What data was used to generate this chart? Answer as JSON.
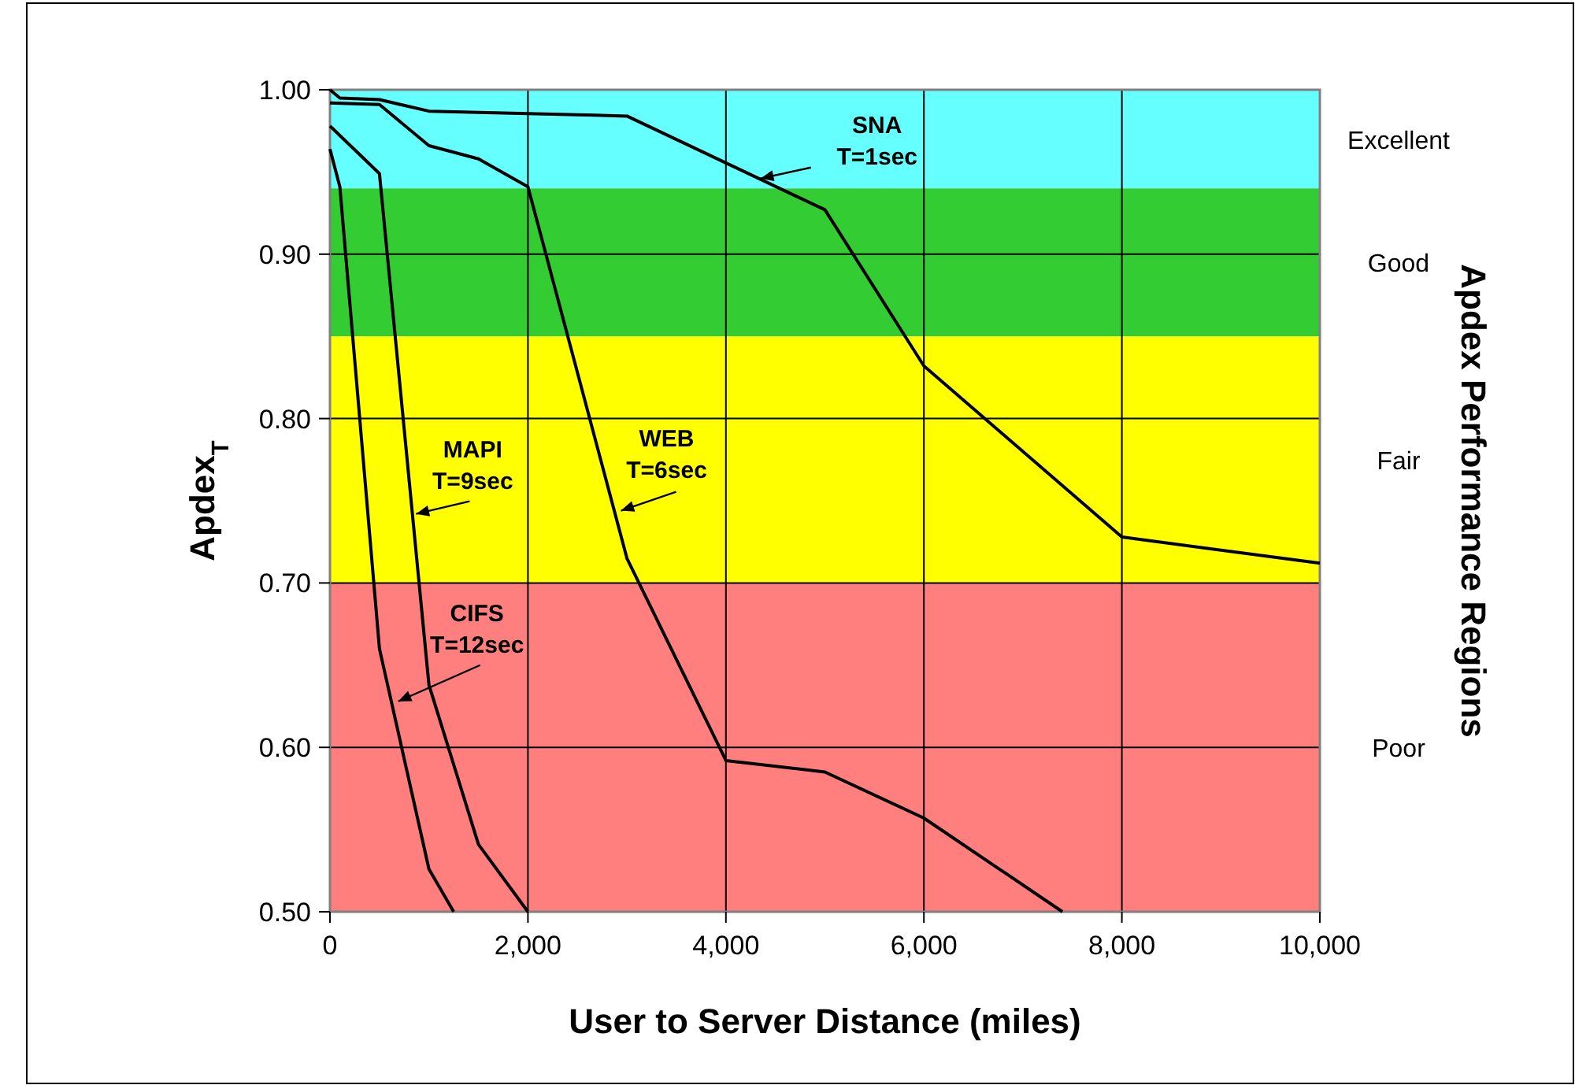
{
  "chart_data": {
    "type": "line",
    "xlabel": "User to Server Distance (miles)",
    "ylabel": "Apdex$_{T}$",
    "y2label": "Apdex Performance Regions",
    "xlim": [
      0,
      10000
    ],
    "ylim": [
      0.5,
      1.0
    ],
    "xticks": [
      0,
      {
        "value": 2000,
        "label": "2,000"
      },
      {
        "value": 4000,
        "label": "4,000"
      },
      {
        "value": 6000,
        "label": "6,000"
      },
      {
        "value": 8000,
        "label": "8,000"
      },
      {
        "value": 10000,
        "label": "10,000"
      }
    ],
    "yticks": [
      {
        "value": 0.5,
        "label": "0.50"
      },
      {
        "value": 0.6,
        "label": "0.60"
      },
      {
        "value": 0.7,
        "label": "0.70"
      },
      {
        "value": 0.8,
        "label": "0.80"
      },
      {
        "value": 0.9,
        "label": "0.90"
      },
      {
        "value": 1.0,
        "label": "1.00"
      }
    ],
    "grid": true,
    "marker": "none",
    "line_style": "solid",
    "series": [
      {
        "color": "#000000",
        "x": [
          0,
          100,
          500,
          1000,
          3000,
          5000,
          6000,
          8000,
          10000
        ],
        "values": [
          1.0,
          0.995,
          0.994,
          0.987,
          0.984,
          0.927,
          0.832,
          0.728,
          0.712
        ]
      },
      {
        "color": "#000000",
        "x": [
          0,
          500,
          1000,
          1500,
          2000,
          3000,
          4000,
          5000,
          6000,
          7400
        ],
        "values": [
          0.992,
          0.991,
          0.966,
          0.958,
          0.941,
          0.715,
          0.592,
          0.585,
          0.557,
          0.5
        ]
      },
      {
        "color": "#000000",
        "x": [
          0,
          500,
          1000,
          1500,
          2000
        ],
        "values": [
          0.978,
          0.949,
          0.638,
          0.541,
          0.5
        ]
      },
      {
        "color": "#000000",
        "x": [
          0,
          100,
          500,
          1000,
          1250
        ],
        "values": [
          0.964,
          0.941,
          0.66,
          0.526,
          0.5
        ]
      }
    ],
    "bands": [
      {
        "axis": "y",
        "from": 0.94,
        "to": 1.0,
        "label": "Excellent",
        "color": "#66ffff"
      },
      {
        "axis": "y",
        "from": 0.85,
        "to": 0.94,
        "label": "Good",
        "color": "#33cc33"
      },
      {
        "axis": "y",
        "from": 0.7,
        "to": 0.85,
        "label": "Fair",
        "color": "#ffff00"
      },
      {
        "axis": "y",
        "from": 0.5,
        "to": 0.7,
        "label": "Poor",
        "color": "#ff7f7f"
      }
    ],
    "annotations": [
      {
        "text": "SNA T=1sec",
        "x": 4350,
        "y": 0.946
      },
      {
        "text": "WEB T=6sec",
        "x": 2940,
        "y": 0.744
      },
      {
        "text": "MAPI T=9sec",
        "x": 870,
        "y": 0.742
      },
      {
        "text": "CIFS T=12sec",
        "x": 690,
        "y": 0.628
      }
    ]
  }
}
